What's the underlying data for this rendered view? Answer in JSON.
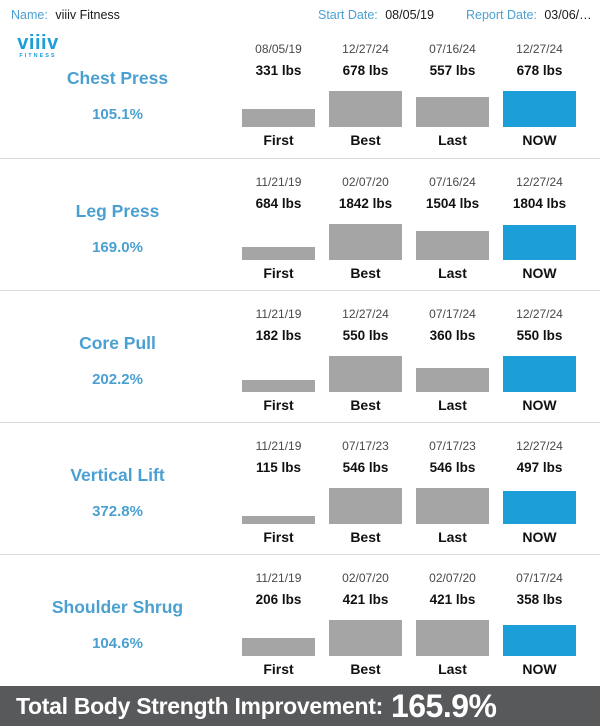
{
  "header": {
    "name_label": "Name:",
    "name_value": "viiiv Fitness",
    "start_date_label": "Start Date:",
    "start_date_value": "08/05/19",
    "report_date_label": "Report Date:",
    "report_date_value": "03/06/…"
  },
  "logo": {
    "brand": "viiiv",
    "tagline": "FITNESS"
  },
  "columns": [
    "First",
    "Best",
    "Last",
    "NOW"
  ],
  "chart_data": [
    {
      "type": "bar",
      "title": "Chest Press",
      "improvement": "105.1%",
      "categories": [
        "First",
        "Best",
        "Last",
        "NOW"
      ],
      "dates": [
        "08/05/19",
        "12/27/24",
        "07/16/24",
        "12/27/24"
      ],
      "labels": [
        "331 lbs",
        "678 lbs",
        "557 lbs",
        "678 lbs"
      ],
      "values": [
        331,
        678,
        557,
        678
      ],
      "unit": "lbs",
      "highlight_index": 3
    },
    {
      "type": "bar",
      "title": "Leg Press",
      "improvement": "169.0%",
      "categories": [
        "First",
        "Best",
        "Last",
        "NOW"
      ],
      "dates": [
        "11/21/19",
        "02/07/20",
        "07/16/24",
        "12/27/24"
      ],
      "labels": [
        "684 lbs",
        "1842 lbs",
        "1504 lbs",
        "1804 lbs"
      ],
      "values": [
        684,
        1842,
        1504,
        1804
      ],
      "unit": "lbs",
      "highlight_index": 3
    },
    {
      "type": "bar",
      "title": "Core Pull",
      "improvement": "202.2%",
      "categories": [
        "First",
        "Best",
        "Last",
        "NOW"
      ],
      "dates": [
        "11/21/19",
        "12/27/24",
        "07/17/24",
        "12/27/24"
      ],
      "labels": [
        "182 lbs",
        "550 lbs",
        "360 lbs",
        "550 lbs"
      ],
      "values": [
        182,
        550,
        360,
        550
      ],
      "unit": "lbs",
      "highlight_index": 3
    },
    {
      "type": "bar",
      "title": "Vertical Lift",
      "improvement": "372.8%",
      "categories": [
        "First",
        "Best",
        "Last",
        "NOW"
      ],
      "dates": [
        "11/21/19",
        "07/17/23",
        "07/17/23",
        "12/27/24"
      ],
      "labels": [
        "115 lbs",
        "546 lbs",
        "546 lbs",
        "497 lbs"
      ],
      "values": [
        115,
        546,
        546,
        497
      ],
      "unit": "lbs",
      "highlight_index": 3
    },
    {
      "type": "bar",
      "title": "Shoulder Shrug",
      "improvement": "104.6%",
      "categories": [
        "First",
        "Best",
        "Last",
        "NOW"
      ],
      "dates": [
        "11/21/19",
        "02/07/20",
        "02/07/20",
        "07/17/24"
      ],
      "labels": [
        "206 lbs",
        "421 lbs",
        "421 lbs",
        "358 lbs"
      ],
      "values": [
        206,
        421,
        421,
        358
      ],
      "unit": "lbs",
      "highlight_index": 3
    }
  ],
  "footer": {
    "label": "Total Body Strength Improvement:",
    "value": "165.9%"
  },
  "colors": {
    "accent_blue": "#1C9FD9",
    "heading_blue": "#4BA0D2",
    "bar_gray": "#A5A5A5",
    "date_gray": "#48484A",
    "divider_gray": "#DCDCDC",
    "footer_gray": "#58595B",
    "text_black": "#111111"
  }
}
